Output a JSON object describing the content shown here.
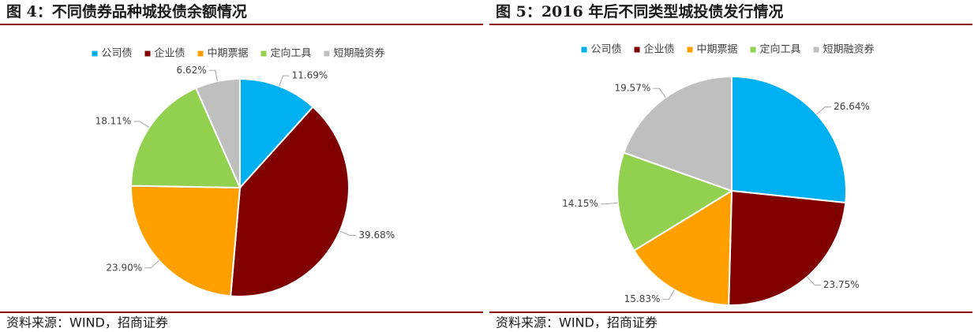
{
  "chart_data": [
    {
      "type": "pie",
      "title": "图 4：不同债券品种城投债余额情况",
      "categories": [
        "公司债",
        "企业债",
        "中期票据",
        "定向工具",
        "短期融资券"
      ],
      "values": [
        11.69,
        39.68,
        23.9,
        18.11,
        6.62
      ],
      "value_labels": [
        "11.69%",
        "39.68%",
        "23.90%",
        "18.11%",
        "6.62%"
      ],
      "colors": [
        "#00b0f0",
        "#800000",
        "#ffa000",
        "#92d050",
        "#bfbfbf"
      ],
      "source": "资料来源：WIND，招商证券"
    },
    {
      "type": "pie",
      "title": "图 5：2016 年后不同类型城投债发行情况",
      "categories": [
        "公司债",
        "企业债",
        "中期票据",
        "定向工具",
        "短期融资券"
      ],
      "values": [
        26.64,
        23.75,
        15.83,
        14.15,
        19.57
      ],
      "value_labels": [
        "26.64%",
        "23.75%",
        "15.83%",
        "14.15%",
        "19.57%"
      ],
      "colors": [
        "#00b0f0",
        "#800000",
        "#ffa000",
        "#92d050",
        "#bfbfbf"
      ],
      "source": "资料来源：WIND，招商证券"
    }
  ]
}
